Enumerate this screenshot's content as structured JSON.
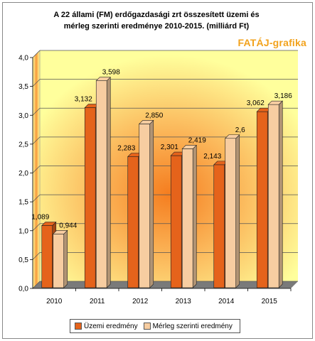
{
  "header": {
    "title_line1": "A 22 állami (FM) erdőgazdasági zrt összesített üzemi és",
    "title_line2": "mérleg szerinti eredménye 2010-2015. (milliárd Ft)",
    "watermark": "FATÁJ-grafika"
  },
  "chart_data": {
    "type": "bar",
    "title": "A 22 állami (FM) erdőgazdasági zrt összesített üzemi és mérleg szerinti eredménye 2010-2015. (milliárd Ft)",
    "categories": [
      "2010",
      "2011",
      "2012",
      "2013",
      "2014",
      "2015"
    ],
    "series": [
      {
        "name": "Üzemi eredmény",
        "values": [
          1.089,
          3.132,
          2.283,
          2.301,
          2.143,
          3.062
        ],
        "labels": [
          "1,089",
          "3,132",
          "2,283",
          "2,301",
          "2,143",
          "3,062"
        ],
        "color": "#e5631b"
      },
      {
        "name": "Mérleg szerinti eredmény",
        "values": [
          0.944,
          3.598,
          2.85,
          2.419,
          2.6,
          3.186
        ],
        "labels": [
          "0,944",
          "3,598",
          "2,850",
          "2,419",
          "2,6",
          "3,186"
        ],
        "color": "#f7cda1"
      }
    ],
    "ylim": [
      0,
      4
    ],
    "yticks": [
      "0,0",
      "0,5",
      "1,0",
      "1,5",
      "2,0",
      "2,5",
      "3,0",
      "3,5",
      "4,0"
    ],
    "grid": true,
    "legend": "bottom"
  }
}
